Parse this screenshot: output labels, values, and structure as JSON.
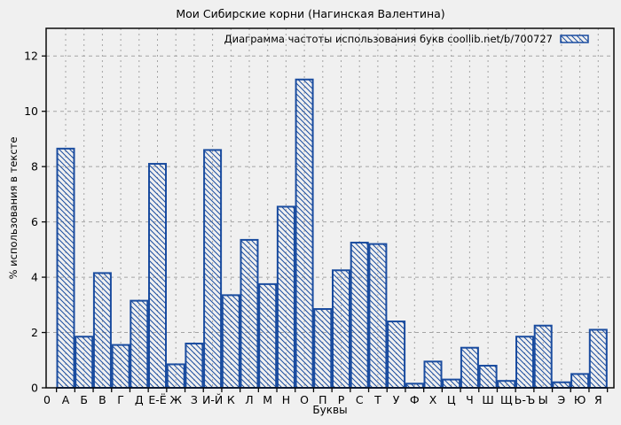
{
  "chart_data": {
    "type": "bar",
    "title": "Мои Сибирские корни (Нагинская Валентина)",
    "legend": "Диаграмма частоты использования букв coollib.net/b/700727",
    "xlabel": "Буквы",
    "ylabel": "% использования в тексте",
    "x_origin_label": "0",
    "categories": [
      "А",
      "Б",
      "В",
      "Г",
      "Д",
      "Е-Ё",
      "Ж",
      "З",
      "И-Й",
      "К",
      "Л",
      "М",
      "Н",
      "О",
      "П",
      "Р",
      "С",
      "Т",
      "У",
      "Ф",
      "Х",
      "Ц",
      "Ч",
      "Ш",
      "Щ",
      "Ь-Ъ",
      "Ы",
      "Э",
      "Ю",
      "Я"
    ],
    "values": [
      8.65,
      1.85,
      4.15,
      1.55,
      3.15,
      8.1,
      0.85,
      1.6,
      8.6,
      3.35,
      5.35,
      3.75,
      6.55,
      11.15,
      2.85,
      4.25,
      5.25,
      5.2,
      2.4,
      0.15,
      0.95,
      0.3,
      1.45,
      0.8,
      0.25,
      1.85,
      2.25,
      0.2,
      0.5,
      2.1
    ],
    "yticks": [
      0,
      2,
      4,
      6,
      8,
      10,
      12
    ],
    "ylim": [
      0,
      13
    ],
    "grid": true,
    "legend_position": "top-right-inside",
    "bar_style": "diagonal-hatch",
    "colors": {
      "bar_stroke": "#1a4c9f",
      "hatch": "#1a4c9f",
      "grid": "#a4a4a4",
      "axis": "#0a0a0a",
      "background": "#f0f0f0",
      "text": "#000000"
    }
  }
}
